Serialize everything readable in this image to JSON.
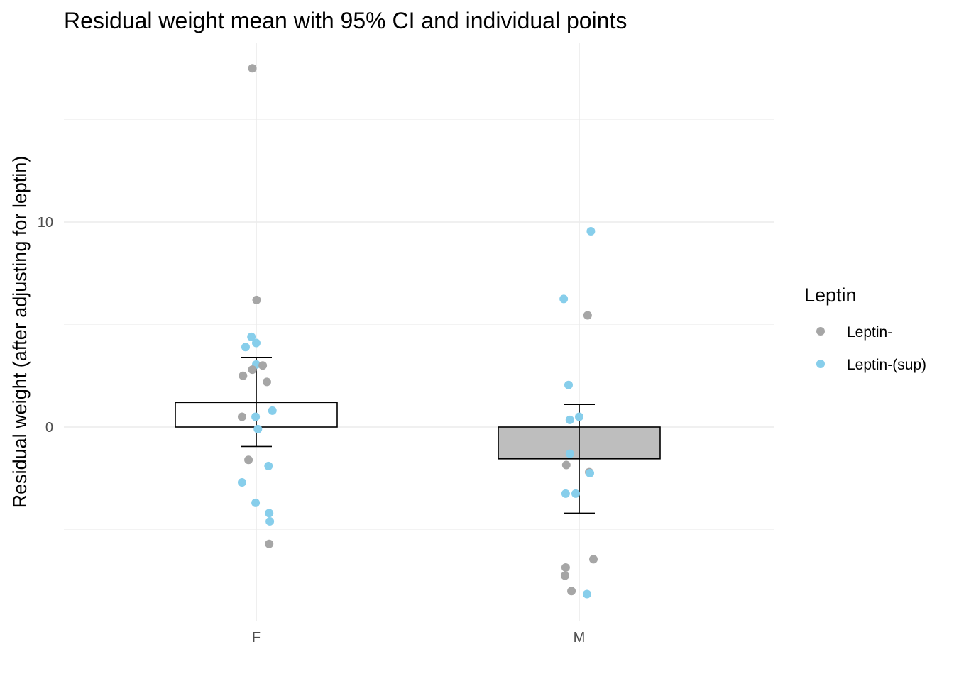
{
  "chart_data": {
    "type": "bar",
    "title": "Residual weight mean with 95% CI and individual points",
    "xlabel": "",
    "ylabel": "Residual weight (after adjusting for leptin)",
    "categories": [
      "F",
      "M"
    ],
    "y_ticks": [
      0,
      10
    ],
    "ylim": [
      -9.3,
      18.7
    ],
    "grid": true,
    "legend": {
      "title": "Leptin",
      "placement": "right",
      "entries": [
        {
          "name": "Leptin-",
          "color": "#a6a6a6"
        },
        {
          "name": "Leptin-(sup)",
          "color": "#87ceeb"
        }
      ]
    },
    "bars": [
      {
        "category": "F",
        "mean": 1.2,
        "ci_low": -0.95,
        "ci_high": 3.4,
        "fill": "#ffffff"
      },
      {
        "category": "M",
        "mean": -1.55,
        "ci_low": -4.2,
        "ci_high": 1.1,
        "fill": "#bebebe"
      }
    ],
    "points": [
      {
        "category": "F",
        "jitter": -0.012,
        "y": 17.5,
        "group": "Leptin-"
      },
      {
        "category": "F",
        "jitter": 0.001,
        "y": 6.2,
        "group": "Leptin-"
      },
      {
        "category": "F",
        "jitter": -0.015,
        "y": 4.4,
        "group": "Leptin-(sup)"
      },
      {
        "category": "F",
        "jitter": 0.0,
        "y": 4.1,
        "group": "Leptin-(sup)"
      },
      {
        "category": "F",
        "jitter": -0.033,
        "y": 3.9,
        "group": "Leptin-(sup)"
      },
      {
        "category": "F",
        "jitter": 0.0,
        "y": 3.05,
        "group": "Leptin-(sup)"
      },
      {
        "category": "F",
        "jitter": 0.02,
        "y": 3.0,
        "group": "Leptin-"
      },
      {
        "category": "F",
        "jitter": -0.012,
        "y": 2.8,
        "group": "Leptin-"
      },
      {
        "category": "F",
        "jitter": -0.041,
        "y": 2.5,
        "group": "Leptin-"
      },
      {
        "category": "F",
        "jitter": 0.033,
        "y": 2.2,
        "group": "Leptin-"
      },
      {
        "category": "F",
        "jitter": 0.05,
        "y": 0.8,
        "group": "Leptin-(sup)"
      },
      {
        "category": "F",
        "jitter": -0.044,
        "y": 0.5,
        "group": "Leptin-"
      },
      {
        "category": "F",
        "jitter": -0.002,
        "y": 0.5,
        "group": "Leptin-(sup)"
      },
      {
        "category": "F",
        "jitter": 0.005,
        "y": -0.1,
        "group": "Leptin-(sup)"
      },
      {
        "category": "F",
        "jitter": -0.024,
        "y": -1.6,
        "group": "Leptin-"
      },
      {
        "category": "F",
        "jitter": 0.038,
        "y": -1.9,
        "group": "Leptin-(sup)"
      },
      {
        "category": "F",
        "jitter": -0.044,
        "y": -2.7,
        "group": "Leptin-(sup)"
      },
      {
        "category": "F",
        "jitter": -0.002,
        "y": -3.7,
        "group": "Leptin-(sup)"
      },
      {
        "category": "F",
        "jitter": 0.04,
        "y": -4.2,
        "group": "Leptin-(sup)"
      },
      {
        "category": "F",
        "jitter": 0.042,
        "y": -4.6,
        "group": "Leptin-(sup)"
      },
      {
        "category": "F",
        "jitter": 0.04,
        "y": -5.7,
        "group": "Leptin-"
      },
      {
        "category": "M",
        "jitter": 0.036,
        "y": 9.55,
        "group": "Leptin-(sup)"
      },
      {
        "category": "M",
        "jitter": -0.048,
        "y": 6.25,
        "group": "Leptin-(sup)"
      },
      {
        "category": "M",
        "jitter": 0.026,
        "y": 5.45,
        "group": "Leptin-"
      },
      {
        "category": "M",
        "jitter": -0.033,
        "y": 2.05,
        "group": "Leptin-(sup)"
      },
      {
        "category": "M",
        "jitter": 0.0,
        "y": 0.5,
        "group": "Leptin-(sup)"
      },
      {
        "category": "M",
        "jitter": -0.029,
        "y": 0.35,
        "group": "Leptin-(sup)"
      },
      {
        "category": "M",
        "jitter": -0.029,
        "y": -1.3,
        "group": "Leptin-(sup)"
      },
      {
        "category": "M",
        "jitter": -0.04,
        "y": -1.85,
        "group": "Leptin-"
      },
      {
        "category": "M",
        "jitter": 0.031,
        "y": -2.2,
        "group": "Leptin-"
      },
      {
        "category": "M",
        "jitter": 0.033,
        "y": -2.25,
        "group": "Leptin-(sup)"
      },
      {
        "category": "M",
        "jitter": -0.042,
        "y": -3.25,
        "group": "Leptin-(sup)"
      },
      {
        "category": "M",
        "jitter": -0.011,
        "y": -3.25,
        "group": "Leptin-(sup)"
      },
      {
        "category": "M",
        "jitter": 0.044,
        "y": -6.45,
        "group": "Leptin-"
      },
      {
        "category": "M",
        "jitter": -0.042,
        "y": -6.85,
        "group": "Leptin-"
      },
      {
        "category": "M",
        "jitter": -0.044,
        "y": -7.25,
        "group": "Leptin-"
      },
      {
        "category": "M",
        "jitter": -0.024,
        "y": -8.0,
        "group": "Leptin-"
      },
      {
        "category": "M",
        "jitter": 0.024,
        "y": -8.15,
        "group": "Leptin-(sup)"
      }
    ]
  }
}
